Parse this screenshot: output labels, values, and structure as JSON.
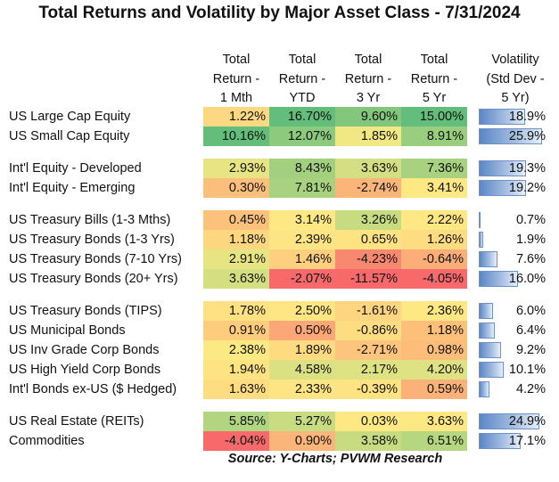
{
  "title": "Total Returns and Volatility by Major Asset Class - 7/31/2024",
  "headers": [
    "Total\nReturn -\n1 Mth",
    "Total\nReturn -\nYTD",
    "Total\nReturn -\n3 Yr",
    "Total\nReturn -\n5 Yr",
    "Volatility\n(Std Dev -\n5 Yr)"
  ],
  "source": "Source:  Y-Charts; PVWM Research",
  "chart_data": {
    "type": "table",
    "title": "Total Returns and Volatility by Major Asset Class - 7/31/2024",
    "columns": [
      "Total Return - 1 Mth",
      "Total Return - YTD",
      "Total Return - 3 Yr",
      "Total Return - 5 Yr",
      "Volatility (Std Dev - 5 Yr)"
    ],
    "volatility_bar_max": 25.9,
    "groups": [
      {
        "rows": [
          {
            "asset": "US Large Cap Equity",
            "returns": [
              "1.22%",
              "16.70%",
              "9.60%",
              "15.00%"
            ],
            "colors": [
              "#fdd882",
              "#63be7b",
              "#82c77c",
              "#63be7b"
            ],
            "volatility": 18.9,
            "volatility_label": "18.9%"
          },
          {
            "asset": "US Small Cap Equity",
            "returns": [
              "10.16%",
              "12.07%",
              "1.85%",
              "8.91%"
            ],
            "colors": [
              "#63be7b",
              "#8cca7e",
              "#f1e784",
              "#99ce7f"
            ],
            "volatility": 25.9,
            "volatility_label": "25.9%"
          }
        ]
      },
      {
        "rows": [
          {
            "asset": "Int'l Equity - Developed",
            "returns": [
              "2.93%",
              "8.43%",
              "3.63%",
              "7.36%"
            ],
            "colors": [
              "#e7e483",
              "#a2d07f",
              "#d3df82",
              "#a8d27f"
            ],
            "volatility": 19.3,
            "volatility_label": "19.3%"
          },
          {
            "asset": "Int'l Equity - Emerging",
            "returns": [
              "0.30%",
              "7.81%",
              "-2.74%",
              "3.41%"
            ],
            "colors": [
              "#fcbf7b",
              "#a8d27f",
              "#fbb579",
              "#fee883"
            ],
            "volatility": 19.2,
            "volatility_label": "19.2%"
          }
        ]
      },
      {
        "rows": [
          {
            "asset": "US Treasury Bills (1-3 Mths)",
            "returns": [
              "0.45%",
              "3.14%",
              "3.26%",
              "2.22%"
            ],
            "colors": [
              "#fcc27c",
              "#fee883",
              "#c7db81",
              "#fee883"
            ],
            "volatility": 0.7,
            "volatility_label": "0.7%"
          },
          {
            "asset": "US Treasury Bonds (1-3 Yrs)",
            "returns": [
              "1.18%",
              "2.39%",
              "0.65%",
              "1.26%"
            ],
            "colors": [
              "#fdd780",
              "#fee583",
              "#fee382",
              "#fedc81"
            ],
            "volatility": 1.9,
            "volatility_label": "1.9%"
          },
          {
            "asset": "US Treasury Bonds (7-10 Yrs)",
            "returns": [
              "2.91%",
              "1.46%",
              "-4.23%",
              "-0.64%"
            ],
            "colors": [
              "#e6e483",
              "#fdcf7e",
              "#f8886f",
              "#fbae78"
            ],
            "volatility": 7.6,
            "volatility_label": "7.6%"
          },
          {
            "asset": "US Treasury Bonds (20+ Yrs)",
            "returns": [
              "3.63%",
              "-2.07%",
              "-11.57%",
              "-4.05%"
            ],
            "colors": [
              "#d4df82",
              "#f8696b",
              "#f8696b",
              "#f8696b"
            ],
            "volatility": 16.0,
            "volatility_label": "16.0%"
          }
        ]
      },
      {
        "rows": [
          {
            "asset": "US Treasury Bonds (TIPS)",
            "returns": [
              "1.78%",
              "2.50%",
              "-1.61%",
              "2.36%"
            ],
            "colors": [
              "#fee182",
              "#fee683",
              "#fdd580",
              "#fee883"
            ],
            "volatility": 6.0,
            "volatility_label": "6.0%"
          },
          {
            "asset": "US Municipal Bonds",
            "returns": [
              "0.91%",
              "0.50%",
              "-0.86%",
              "1.18%"
            ],
            "colors": [
              "#fdcc7d",
              "#fba777",
              "#fedc81",
              "#fcc07b"
            ],
            "volatility": 6.4,
            "volatility_label": "6.4%"
          },
          {
            "asset": "US Inv Grade Corp Bonds",
            "returns": [
              "2.38%",
              "1.89%",
              "-2.71%",
              "0.98%"
            ],
            "colors": [
              "#fbe983",
              "#fedb81",
              "#fcc47c",
              "#fcbd7b"
            ],
            "volatility": 9.2,
            "volatility_label": "9.2%"
          },
          {
            "asset": "US High Yield Corp Bonds",
            "returns": [
              "1.94%",
              "4.58%",
              "2.17%",
              "4.20%"
            ],
            "colors": [
              "#fee382",
              "#dbe182",
              "#dee282",
              "#dfe282"
            ],
            "volatility": 10.1,
            "volatility_label": "10.1%"
          },
          {
            "asset": "Int'l Bonds ex-US ($ Hedged)",
            "returns": [
              "1.63%",
              "2.33%",
              "-0.39%",
              "0.59%"
            ],
            "colors": [
              "#fedc81",
              "#fee583",
              "#fee382",
              "#fbb279"
            ],
            "volatility": 4.2,
            "volatility_label": "4.2%"
          }
        ]
      },
      {
        "rows": [
          {
            "asset": "US Real Estate (REITs)",
            "returns": [
              "5.85%",
              "5.27%",
              "0.03%",
              "3.63%"
            ],
            "colors": [
              "#b1d580",
              "#cadc81",
              "#fee883",
              "#fee883"
            ],
            "volatility": 24.9,
            "volatility_label": "24.9%"
          },
          {
            "asset": "Commodities",
            "returns": [
              "-4.04%",
              "0.90%",
              "3.58%",
              "6.51%"
            ],
            "colors": [
              "#f8696b",
              "#fbb479",
              "#c8db81",
              "#b6d680"
            ],
            "volatility": 17.1,
            "volatility_label": "17.1%"
          }
        ]
      }
    ]
  }
}
